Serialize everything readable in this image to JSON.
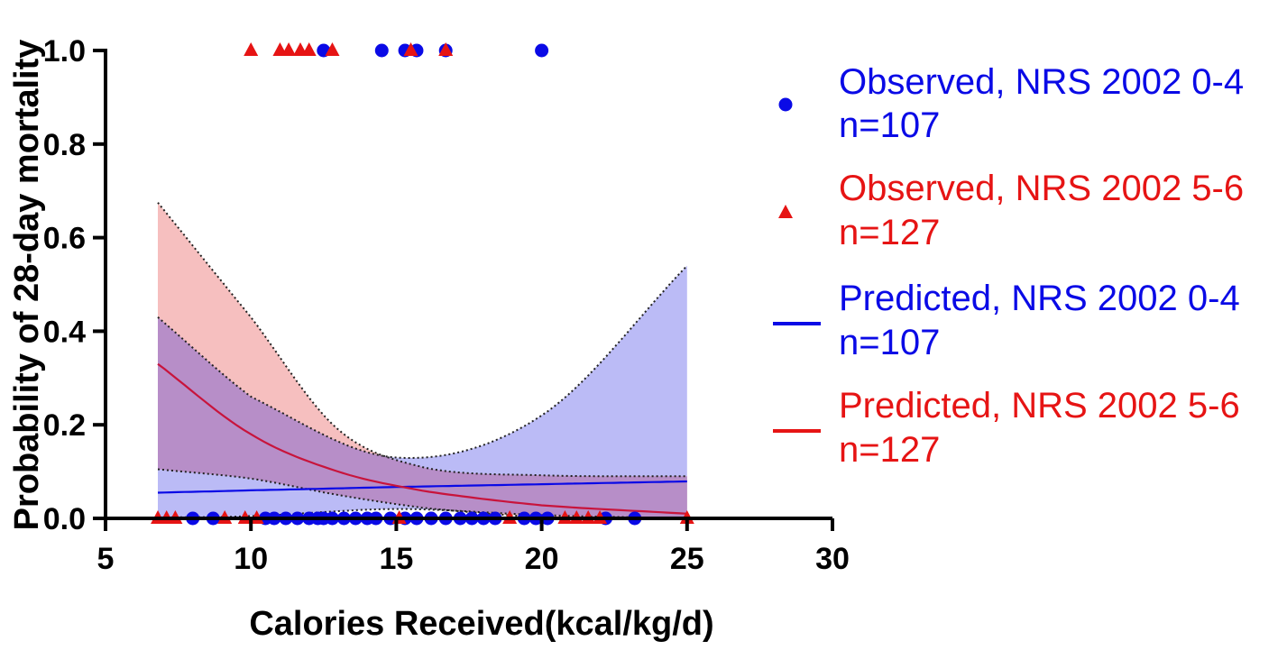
{
  "chart_data": {
    "type": "scatter",
    "xlabel": "Calories Received(kcal/kg/d)",
    "ylabel": "Probability of 28-day mortality",
    "xlim": [
      5,
      30
    ],
    "ylim": [
      0,
      1.0
    ],
    "xticks": [
      5,
      10,
      15,
      20,
      25,
      30
    ],
    "xtick_labels": [
      "5",
      "10",
      "15",
      "20",
      "25",
      "30"
    ],
    "yticks": [
      0,
      0.2,
      0.4,
      0.6,
      0.8,
      1.0
    ],
    "ytick_labels": [
      "0.0",
      "0.2",
      "0.4",
      "0.6",
      "0.8",
      "1.0"
    ],
    "grid": false,
    "legend_position": "right",
    "colors": {
      "group_0_4": "#0a0ae6",
      "group_5_6": "#e61414",
      "band_0_4": "#b4b4f5",
      "band_5_6": "#f5b4b4",
      "overlap": "#b48cc8",
      "red_line": "#c8143c"
    },
    "series": [
      {
        "name": "Observed, NRS 2002 0-4",
        "n_label": "n=107",
        "kind": "observed",
        "marker": "circle",
        "color": "#0a0ae6",
        "died_x": [
          12.5,
          14.5,
          15.3,
          15.7,
          16.7,
          20.0
        ],
        "survived_x": [
          8.0,
          8.7,
          10.5,
          10.8,
          11.2,
          11.6,
          12.0,
          12.3,
          12.5,
          12.8,
          13.2,
          13.6,
          14.0,
          14.3,
          14.8,
          15.3,
          15.7,
          16.2,
          16.7,
          17.2,
          17.6,
          18.0,
          18.4,
          19.4,
          19.8,
          20.2,
          22.2,
          23.2
        ]
      },
      {
        "name": "Observed, NRS 2002 5-6",
        "n_label": "n=127",
        "kind": "observed",
        "marker": "triangle",
        "color": "#e61414",
        "died_x": [
          10.0,
          11.0,
          11.3,
          11.7,
          12.0,
          12.8,
          15.5,
          16.7
        ],
        "survived_x": [
          6.8,
          7.1,
          7.4,
          9.1,
          9.8,
          10.2,
          15.1,
          18.9,
          20.8,
          21.2,
          21.6,
          22.0,
          25.0
        ]
      },
      {
        "name": "Predicted, NRS 2002 0-4",
        "n_label": "n=107",
        "kind": "predicted",
        "color": "#0a0ae6",
        "x": [
          6.8,
          10,
          15,
          20,
          25
        ],
        "y": [
          0.055,
          0.06,
          0.067,
          0.073,
          0.079
        ],
        "ci_lower": [
          0.002,
          0.005,
          0.02,
          0.007,
          0.0
        ],
        "ci_upper": [
          0.43,
          0.26,
          0.13,
          0.22,
          0.54
        ]
      },
      {
        "name": "Predicted, NRS 2002 5-6",
        "n_label": "n=127",
        "kind": "predicted",
        "color": "#e61414",
        "x": [
          6.8,
          10,
          13,
          16,
          20,
          25
        ],
        "y": [
          0.33,
          0.18,
          0.1,
          0.058,
          0.028,
          0.01
        ],
        "ci_lower": [
          0.105,
          0.085,
          0.05,
          0.022,
          0.003,
          0.0
        ],
        "ci_upper": [
          0.675,
          0.43,
          0.19,
          0.108,
          0.092,
          0.09
        ]
      }
    ]
  }
}
